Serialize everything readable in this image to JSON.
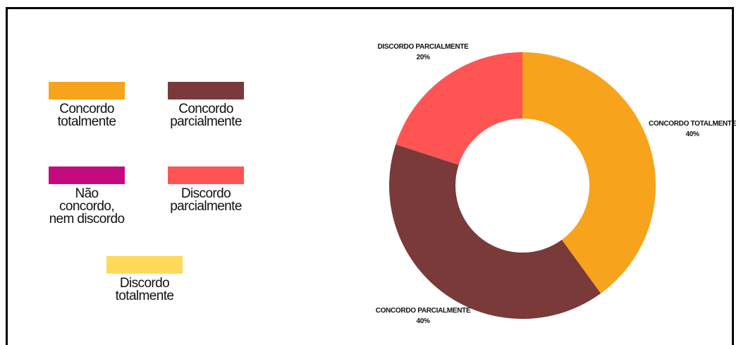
{
  "chart_data": {
    "type": "pie",
    "variant": "donut",
    "legend_placement": "left",
    "categories": [
      "Concordo totalmente",
      "Concordo parcialmente",
      "Não concordo, nem discordo",
      "Discordo parcialmente",
      "Discordo totalmente"
    ],
    "legend": [
      {
        "label": "Concordo\ntotalmente",
        "color": "#F7A31C"
      },
      {
        "label": "Concordo\nparcialmente",
        "color": "#7A3A3A"
      },
      {
        "label": "Não concordo,\nnem discordo",
        "color": "#C50A7F"
      },
      {
        "label": "Discordo\nparcialmente",
        "color": "#FF5454"
      },
      {
        "label": "Discordo\ntotalmente",
        "color": "#FFD95A"
      }
    ],
    "slices": [
      {
        "name": "CONCORDO TOTALMENTE",
        "value": 40,
        "percent_label": "40%",
        "color": "#F7A31C"
      },
      {
        "name": "CONCORDO PARCIALMENTE",
        "value": 40,
        "percent_label": "40%",
        "color": "#7A3A3A"
      },
      {
        "name": "DISCORDO PARCIALMENTE",
        "value": 20,
        "percent_label": "20%",
        "color": "#FF5454"
      }
    ]
  }
}
